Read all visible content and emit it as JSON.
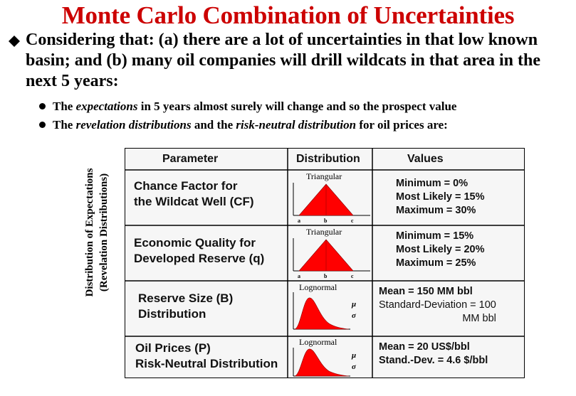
{
  "title": "Monte Carlo Combination of Uncertainties",
  "main_point": "Considering that: (a) there are a lot of uncertainties in that low known basin; and (b) many oil companies will drill wildcats in that area in the next 5 years:",
  "sub_points": [
    {
      "pre": "The ",
      "em": "expectations",
      "mid": " in 5 years almost surely will change and so the prospect value",
      "em2": "",
      "post": ""
    },
    {
      "pre": "The ",
      "em": "revelation distributions",
      "mid": " and the ",
      "em2": "risk-neutral distribution",
      "post": " for oil prices are:"
    }
  ],
  "side_label": {
    "line1": "Distribution of Expectations",
    "line2": "(Revelation Distributions)"
  },
  "table": {
    "headers": [
      "Parameter",
      "Distribution",
      "Values"
    ],
    "rows": [
      {
        "param": [
          "Chance Factor for",
          "the Wildcat Well (CF)"
        ],
        "dist_type": "Triangular",
        "dist_labels": [
          "a",
          "b",
          "c"
        ],
        "values": [
          "Minimum =    0%",
          "Most Likely = 15%",
          "Maximum = 30%"
        ]
      },
      {
        "param": [
          "Economic Quality for",
          "Developed Reserve (q)"
        ],
        "dist_type": "Triangular",
        "dist_labels": [
          "a",
          "b",
          "c"
        ],
        "values": [
          "Minimum = 15%",
          "Most Likely = 20%",
          "Maximum = 25%"
        ]
      },
      {
        "param": [
          "Reserve Size (B)",
          "Distribution"
        ],
        "dist_type": "Lognormal",
        "dist_labels": [
          "μ",
          "σ"
        ],
        "values": [
          "Mean = 150 MM bbl",
          "Standard-Deviation = 100",
          "MM bbl"
        ]
      },
      {
        "param": [
          "Oil Prices (P)",
          "Risk-Neutral Distribution"
        ],
        "dist_type": "Lognormal",
        "dist_labels": [
          "μ",
          "σ"
        ],
        "values": [
          "Mean = 20 US$/bbl",
          "Stand.-Dev. = 4.6 $/bbl"
        ]
      }
    ]
  },
  "colors": {
    "title": "#cc0000",
    "dist_fill": "#ff0000"
  }
}
